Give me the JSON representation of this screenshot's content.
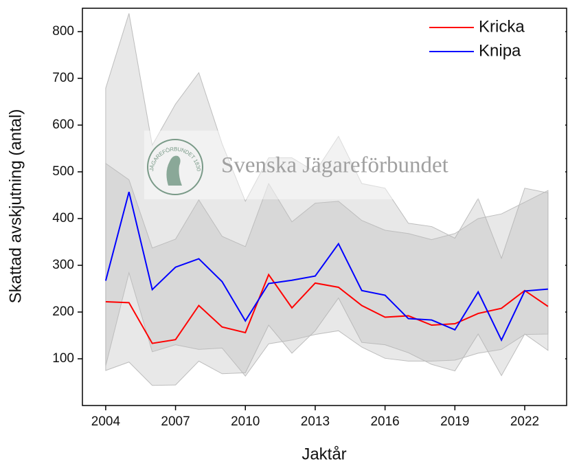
{
  "chart_data": {
    "type": "line",
    "xlabel": "Jaktår",
    "ylabel": "Skattad avskjutning (antal)",
    "watermark": "Svenska Jägareförbundet",
    "logo_text": "JÄGAREFÖRBUNDET 1830",
    "x": [
      2004,
      2005,
      2006,
      2007,
      2008,
      2009,
      2010,
      2011,
      2012,
      2013,
      2014,
      2015,
      2016,
      2017,
      2018,
      2019,
      2020,
      2021,
      2022,
      2023
    ],
    "series": [
      {
        "name": "Kricka",
        "color": "#ff0000",
        "values": [
          222,
          220,
          133,
          141,
          214,
          168,
          156,
          280,
          209,
          262,
          253,
          214,
          189,
          192,
          172,
          175,
          197,
          208,
          246,
          212
        ],
        "lower": [
          85,
          284,
          115,
          130,
          120,
          123,
          63,
          132,
          140,
          152,
          160,
          125,
          101,
          95,
          95,
          97,
          112,
          120,
          152,
          153
        ],
        "upper": [
          518,
          483,
          337,
          356,
          440,
          362,
          340,
          475,
          393,
          433,
          437,
          396,
          375,
          368,
          355,
          368,
          400,
          410,
          435,
          460
        ]
      },
      {
        "name": "Knipa",
        "color": "#0000ff",
        "values": [
          267,
          457,
          248,
          296,
          314,
          265,
          181,
          261,
          268,
          277,
          346,
          246,
          236,
          186,
          183,
          162,
          243,
          140,
          245,
          249
        ],
        "lower": [
          75,
          93,
          43,
          44,
          95,
          68,
          70,
          172,
          112,
          160,
          230,
          135,
          130,
          113,
          88,
          74,
          153,
          64,
          153,
          118
        ],
        "upper": [
          679,
          839,
          557,
          645,
          712,
          560,
          437,
          530,
          530,
          500,
          576,
          475,
          465,
          390,
          383,
          358,
          443,
          315,
          465,
          455
        ]
      }
    ],
    "xlim": [
      2003,
      2023.8
    ],
    "xticks": [
      2004,
      2007,
      2010,
      2013,
      2016,
      2019,
      2022
    ],
    "ylim": [
      0,
      850
    ],
    "yticks": [
      100,
      200,
      300,
      400,
      500,
      600,
      700,
      800
    ],
    "legend": "upper right"
  }
}
